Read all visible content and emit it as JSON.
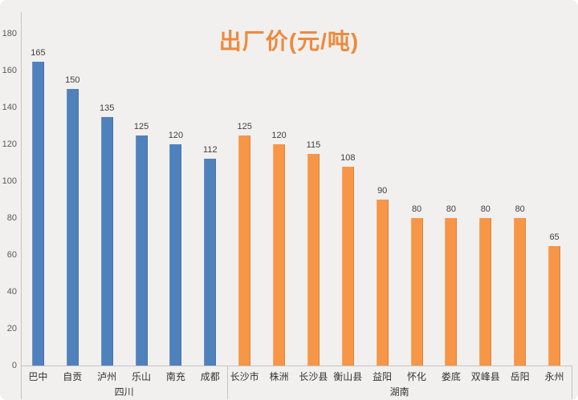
{
  "chart_data": {
    "type": "bar",
    "title": "出厂价(元/吨)",
    "title_color": "#ee8a3c",
    "xlabel": "",
    "ylabel": "",
    "ylim": [
      0,
      180
    ],
    "yticks": [
      0,
      20,
      40,
      60,
      80,
      100,
      120,
      140,
      160,
      180
    ],
    "grid": false,
    "legend_position": "none",
    "value_labels": true,
    "axis_line_color": "#c6c4c2",
    "groups": [
      {
        "name": "四川",
        "color": "#4f81bd",
        "categories": [
          "巴中",
          "自贡",
          "泸州",
          "乐山",
          "南充",
          "成都"
        ],
        "values": [
          165,
          150,
          135,
          125,
          120,
          112
        ]
      },
      {
        "name": "湖南",
        "color": "#f79646",
        "categories": [
          "长沙市",
          "株洲",
          "长沙县",
          "衡山县",
          "益阳",
          "怀化",
          "娄底",
          "双峰县",
          "岳阳",
          "永州"
        ],
        "values": [
          125,
          120,
          115,
          108,
          90,
          80,
          80,
          80,
          80,
          65
        ]
      }
    ]
  }
}
